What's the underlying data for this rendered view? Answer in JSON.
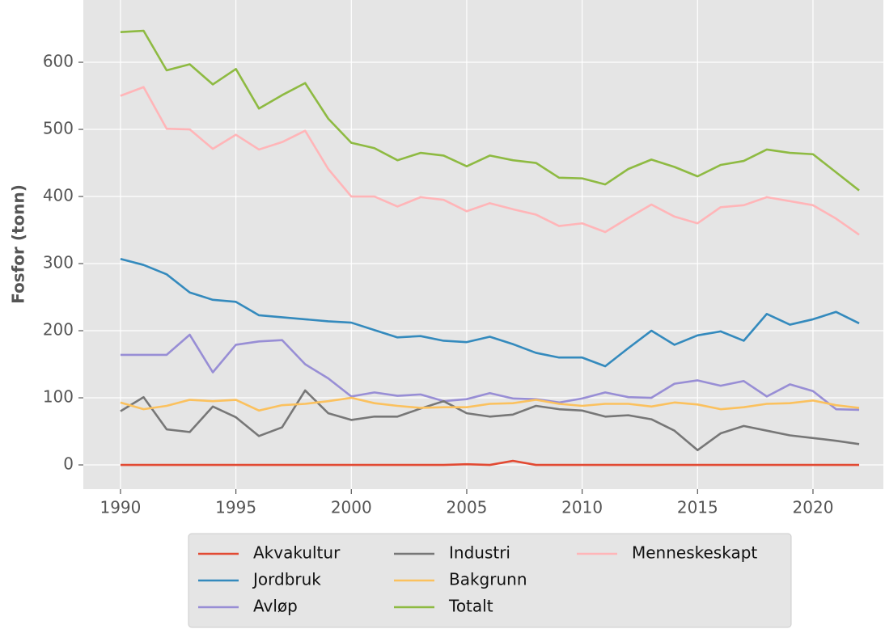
{
  "chart_data": {
    "type": "line",
    "ylabel": "Fosfor (tonn)",
    "x": [
      1990,
      1991,
      1992,
      1993,
      1994,
      1995,
      1996,
      1997,
      1998,
      1999,
      2000,
      2001,
      2002,
      2003,
      2004,
      2005,
      2006,
      2007,
      2008,
      2009,
      2010,
      2011,
      2012,
      2013,
      2014,
      2015,
      2016,
      2017,
      2018,
      2019,
      2020,
      2021,
      2022
    ],
    "xlim": [
      1988.39,
      2023.05
    ],
    "xticks": [
      1990,
      1995,
      2000,
      2005,
      2010,
      2015,
      2020
    ],
    "ylim": [
      -36.1,
      692.8
    ],
    "yticks": [
      0,
      100,
      200,
      300,
      400,
      500,
      600
    ],
    "grid": true,
    "legend": "lower center outside",
    "series": [
      {
        "name": "Akvakultur",
        "color": "#E24A33",
        "values": [
          0,
          0,
          0,
          0,
          0,
          0,
          0,
          0,
          0,
          0,
          0,
          0,
          0,
          0,
          0,
          1,
          0,
          6,
          0,
          0,
          0,
          0,
          0,
          0,
          0,
          0,
          0,
          0,
          0,
          0,
          0,
          0,
          0
        ]
      },
      {
        "name": "Jordbruk",
        "color": "#348ABD",
        "values": [
          307,
          298,
          284,
          257,
          246,
          243,
          223,
          220,
          217,
          214,
          212,
          201,
          190,
          192,
          185,
          183,
          191,
          180,
          167,
          160,
          160,
          147,
          174,
          200,
          179,
          193,
          199,
          185,
          225,
          209,
          217,
          228,
          211
        ]
      },
      {
        "name": "Avløp",
        "color": "#988ED5",
        "values": [
          164,
          164,
          164,
          194,
          138,
          179,
          184,
          186,
          150,
          129,
          102,
          108,
          103,
          105,
          95,
          98,
          107,
          99,
          98,
          93,
          99,
          108,
          101,
          100,
          121,
          126,
          118,
          125,
          102,
          120,
          110,
          83,
          82
        ]
      },
      {
        "name": "Industri",
        "color": "#777777",
        "values": [
          80,
          101,
          53,
          49,
          87,
          71,
          43,
          56,
          111,
          77,
          67,
          72,
          72,
          84,
          95,
          77,
          72,
          75,
          88,
          83,
          81,
          72,
          74,
          68,
          51,
          22,
          47,
          58,
          51,
          44,
          40,
          36,
          31
        ]
      },
      {
        "name": "Bakgrunn",
        "color": "#FBC15E",
        "values": [
          93,
          83,
          88,
          97,
          95,
          97,
          81,
          89,
          91,
          95,
          100,
          92,
          88,
          85,
          86,
          86,
          91,
          92,
          97,
          91,
          88,
          91,
          91,
          87,
          93,
          90,
          83,
          86,
          91,
          92,
          96,
          89,
          85
        ]
      },
      {
        "name": "Totalt",
        "color": "#8EBA42",
        "values": [
          645,
          647,
          588,
          597,
          567,
          590,
          531,
          551,
          569,
          516,
          480,
          472,
          454,
          465,
          461,
          445,
          461,
          454,
          450,
          428,
          427,
          418,
          441,
          455,
          444,
          430,
          447,
          453,
          470,
          465,
          463,
          436,
          409
        ]
      },
      {
        "name": "Menneskeskapt",
        "color": "#FFB5B8",
        "values": [
          550,
          563,
          501,
          500,
          471,
          492,
          470,
          481,
          498,
          441,
          400,
          400,
          385,
          399,
          395,
          378,
          390,
          381,
          373,
          356,
          360,
          347,
          368,
          388,
          370,
          360,
          384,
          387,
          399,
          393,
          387,
          367,
          343
        ]
      }
    ]
  }
}
